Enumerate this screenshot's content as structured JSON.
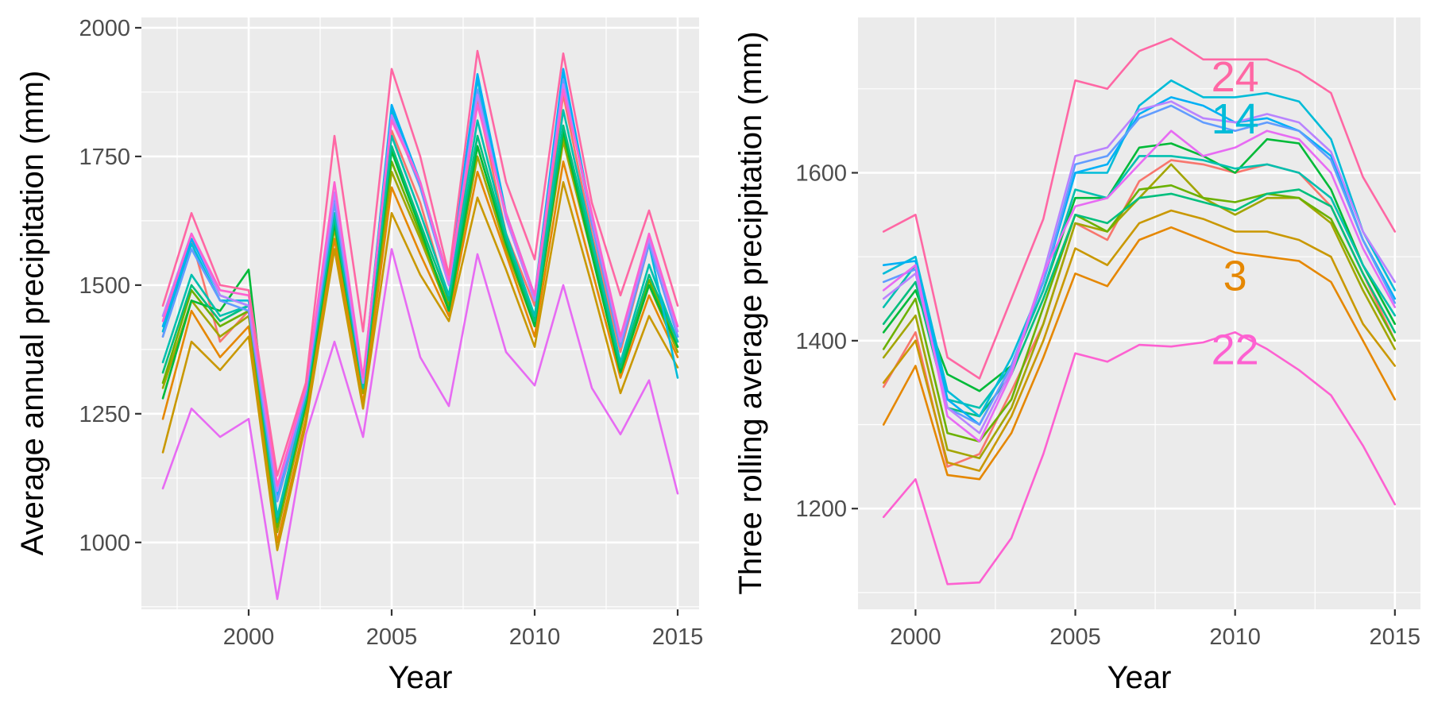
{
  "chart_data": [
    {
      "type": "line",
      "title": "",
      "xlabel": "Year",
      "ylabel": "Average annual precipitation (mm)",
      "xlim": [
        1996.25,
        2015.75
      ],
      "ylim": [
        870,
        2020
      ],
      "x_ticks": [
        2000,
        2005,
        2010,
        2015
      ],
      "x_tick_labels": [
        "2000",
        "2005",
        "2010",
        "2015"
      ],
      "y_ticks": [
        1000,
        1250,
        1500,
        1750,
        2000
      ],
      "y_tick_labels": [
        "1000",
        "1250",
        "1500",
        "1750",
        "2000"
      ],
      "grid": true,
      "legend": "none",
      "x": [
        1997,
        1998,
        1999,
        2000,
        2001,
        2002,
        2003,
        2004,
        2005,
        2006,
        2007,
        2008,
        2009,
        2010,
        2011,
        2012,
        2013,
        2014,
        2015
      ],
      "series": [
        {
          "color": "#F8766D",
          "values": [
            1400,
            1590,
            1390,
            1450,
            1080,
            1280,
            1680,
            1310,
            1800,
            1660,
            1470,
            1860,
            1600,
            1460,
            1870,
            1600,
            1370,
            1580,
            1400
          ]
        },
        {
          "color": "#E58700",
          "values": [
            1240,
            1450,
            1360,
            1420,
            1000,
            1240,
            1590,
            1270,
            1690,
            1560,
            1440,
            1720,
            1560,
            1400,
            1740,
            1530,
            1320,
            1480,
            1360
          ]
        },
        {
          "color": "#C99800",
          "values": [
            1175,
            1390,
            1335,
            1400,
            985,
            1230,
            1570,
            1260,
            1640,
            1520,
            1430,
            1670,
            1530,
            1380,
            1700,
            1500,
            1290,
            1440,
            1340
          ]
        },
        {
          "color": "#A3A500",
          "values": [
            1300,
            1470,
            1400,
            1440,
            1020,
            1260,
            1610,
            1290,
            1720,
            1590,
            1450,
            1750,
            1570,
            1420,
            1780,
            1560,
            1330,
            1500,
            1370
          ]
        },
        {
          "color": "#6BB100",
          "values": [
            1310,
            1490,
            1420,
            1450,
            1030,
            1270,
            1620,
            1300,
            1740,
            1600,
            1460,
            1770,
            1580,
            1430,
            1790,
            1570,
            1340,
            1510,
            1380
          ]
        },
        {
          "color": "#00BA38",
          "values": [
            1280,
            1470,
            1450,
            1530,
            1040,
            1270,
            1620,
            1300,
            1760,
            1610,
            1450,
            1770,
            1580,
            1420,
            1800,
            1560,
            1330,
            1500,
            1380
          ]
        },
        {
          "color": "#00BF7D",
          "values": [
            1330,
            1500,
            1430,
            1460,
            1040,
            1280,
            1630,
            1300,
            1770,
            1620,
            1470,
            1790,
            1590,
            1430,
            1810,
            1580,
            1340,
            1520,
            1390
          ]
        },
        {
          "color": "#00C0AF",
          "values": [
            1350,
            1520,
            1440,
            1460,
            1050,
            1280,
            1640,
            1300,
            1790,
            1640,
            1480,
            1820,
            1600,
            1440,
            1840,
            1590,
            1350,
            1540,
            1390
          ]
        },
        {
          "color": "#00BCD8",
          "values": [
            1410,
            1580,
            1470,
            1470,
            1080,
            1290,
            1660,
            1310,
            1840,
            1690,
            1500,
            1900,
            1630,
            1470,
            1910,
            1620,
            1380,
            1580,
            1320
          ]
        },
        {
          "color": "#00B0F6",
          "values": [
            1420,
            1590,
            1480,
            1460,
            1090,
            1300,
            1670,
            1310,
            1850,
            1700,
            1510,
            1910,
            1640,
            1480,
            1920,
            1630,
            1390,
            1590,
            1400
          ]
        },
        {
          "color": "#619CFF",
          "values": [
            1400,
            1570,
            1470,
            1450,
            1080,
            1290,
            1660,
            1310,
            1830,
            1690,
            1500,
            1880,
            1630,
            1470,
            1900,
            1620,
            1380,
            1580,
            1400
          ]
        },
        {
          "color": "#B983FF",
          "values": [
            1440,
            1600,
            1480,
            1460,
            1100,
            1300,
            1680,
            1310,
            1830,
            1700,
            1500,
            1870,
            1630,
            1470,
            1890,
            1630,
            1390,
            1590,
            1410
          ]
        },
        {
          "color": "#E76BF3",
          "values": [
            1105,
            1260,
            1205,
            1240,
            890,
            1210,
            1390,
            1205,
            1570,
            1360,
            1265,
            1560,
            1370,
            1305,
            1500,
            1300,
            1210,
            1315,
            1095
          ]
        },
        {
          "color": "#FD61D1",
          "values": [
            1430,
            1600,
            1490,
            1480,
            1110,
            1300,
            1700,
            1320,
            1820,
            1700,
            1510,
            1850,
            1640,
            1480,
            1880,
            1640,
            1400,
            1600,
            1420
          ]
        },
        {
          "color": "#FF67A4",
          "values": [
            1460,
            1640,
            1500,
            1490,
            1130,
            1310,
            1790,
            1410,
            1920,
            1750,
            1520,
            1955,
            1700,
            1550,
            1950,
            1660,
            1480,
            1645,
            1460
          ]
        }
      ]
    },
    {
      "type": "line",
      "title": "",
      "xlabel": "Year",
      "ylabel": "Three rolling average precipitation (mm)",
      "xlim": [
        1998.2,
        2015.8
      ],
      "ylim": [
        1080,
        1785
      ],
      "x_ticks": [
        2000,
        2005,
        2010,
        2015
      ],
      "x_tick_labels": [
        "2000",
        "2005",
        "2010",
        "2015"
      ],
      "y_ticks": [
        1200,
        1400,
        1600
      ],
      "y_tick_labels": [
        "1200",
        "1400",
        "1600"
      ],
      "grid": true,
      "legend": "none",
      "x": [
        1999,
        2000,
        2001,
        2002,
        2003,
        2004,
        2005,
        2006,
        2007,
        2008,
        2009,
        2010,
        2011,
        2012,
        2013,
        2014,
        2015
      ],
      "annotations": [
        {
          "text": "24",
          "x": 2010,
          "y": 1715,
          "color": "#FF67A4"
        },
        {
          "text": "14",
          "x": 2010,
          "y": 1665,
          "color": "#00BCD8"
        },
        {
          "text": "3",
          "x": 2010,
          "y": 1478,
          "color": "#E58700"
        },
        {
          "text": "22",
          "x": 2010,
          "y": 1390,
          "color": "#FD61D1"
        }
      ],
      "series": [
        {
          "color": "#F8766D",
          "values": [
            1345,
            1410,
            1250,
            1265,
            1340,
            1420,
            1540,
            1520,
            1590,
            1615,
            1610,
            1600,
            1610,
            1600,
            1560,
            1480,
            1400
          ]
        },
        {
          "color": "#E58700",
          "values": [
            1300,
            1370,
            1240,
            1235,
            1290,
            1380,
            1480,
            1465,
            1520,
            1535,
            1520,
            1505,
            1500,
            1495,
            1470,
            1400,
            1330
          ]
        },
        {
          "color": "#C99800",
          "values": [
            1350,
            1400,
            1255,
            1245,
            1310,
            1400,
            1510,
            1490,
            1540,
            1555,
            1545,
            1530,
            1530,
            1520,
            1500,
            1420,
            1370
          ]
        },
        {
          "color": "#A3A500",
          "values": [
            1380,
            1430,
            1270,
            1260,
            1320,
            1420,
            1540,
            1530,
            1570,
            1610,
            1570,
            1550,
            1570,
            1570,
            1540,
            1460,
            1390
          ]
        },
        {
          "color": "#6BB100",
          "values": [
            1390,
            1450,
            1290,
            1280,
            1330,
            1440,
            1550,
            1530,
            1580,
            1585,
            1570,
            1565,
            1575,
            1570,
            1545,
            1470,
            1400
          ]
        },
        {
          "color": "#00BA38",
          "values": [
            1410,
            1460,
            1360,
            1340,
            1370,
            1460,
            1570,
            1570,
            1630,
            1635,
            1620,
            1600,
            1640,
            1635,
            1580,
            1490,
            1420
          ]
        },
        {
          "color": "#00BF7D",
          "values": [
            1420,
            1470,
            1320,
            1310,
            1360,
            1450,
            1550,
            1540,
            1570,
            1575,
            1565,
            1555,
            1575,
            1580,
            1560,
            1480,
            1410
          ]
        },
        {
          "color": "#00C0AF",
          "values": [
            1440,
            1490,
            1330,
            1320,
            1370,
            1460,
            1580,
            1570,
            1620,
            1620,
            1615,
            1605,
            1610,
            1600,
            1570,
            1490,
            1430
          ]
        },
        {
          "color": "#00BCD8",
          "values": [
            1480,
            1500,
            1340,
            1310,
            1380,
            1470,
            1600,
            1600,
            1680,
            1710,
            1690,
            1690,
            1695,
            1685,
            1640,
            1530,
            1460
          ]
        },
        {
          "color": "#00B0F6",
          "values": [
            1490,
            1495,
            1330,
            1300,
            1370,
            1470,
            1600,
            1610,
            1670,
            1690,
            1680,
            1660,
            1665,
            1650,
            1620,
            1520,
            1450
          ]
        },
        {
          "color": "#619CFF",
          "values": [
            1470,
            1485,
            1320,
            1300,
            1370,
            1470,
            1610,
            1620,
            1665,
            1680,
            1660,
            1650,
            1660,
            1650,
            1615,
            1520,
            1445
          ]
        },
        {
          "color": "#B983FF",
          "values": [
            1450,
            1480,
            1320,
            1290,
            1365,
            1480,
            1620,
            1630,
            1675,
            1685,
            1665,
            1660,
            1670,
            1660,
            1625,
            1530,
            1470
          ]
        },
        {
          "color": "#E76BF3",
          "values": [
            1460,
            1490,
            1310,
            1280,
            1360,
            1480,
            1560,
            1570,
            1610,
            1650,
            1620,
            1630,
            1650,
            1640,
            1600,
            1510,
            1440
          ]
        },
        {
          "color": "#FD61D1",
          "values": [
            1190,
            1235,
            1110,
            1112,
            1165,
            1265,
            1385,
            1375,
            1395,
            1393,
            1398,
            1410,
            1390,
            1365,
            1335,
            1275,
            1205
          ]
        },
        {
          "color": "#FF67A4",
          "values": [
            1530,
            1550,
            1380,
            1355,
            1450,
            1545,
            1710,
            1700,
            1745,
            1760,
            1735,
            1735,
            1735,
            1720,
            1695,
            1595,
            1530
          ]
        }
      ]
    }
  ]
}
